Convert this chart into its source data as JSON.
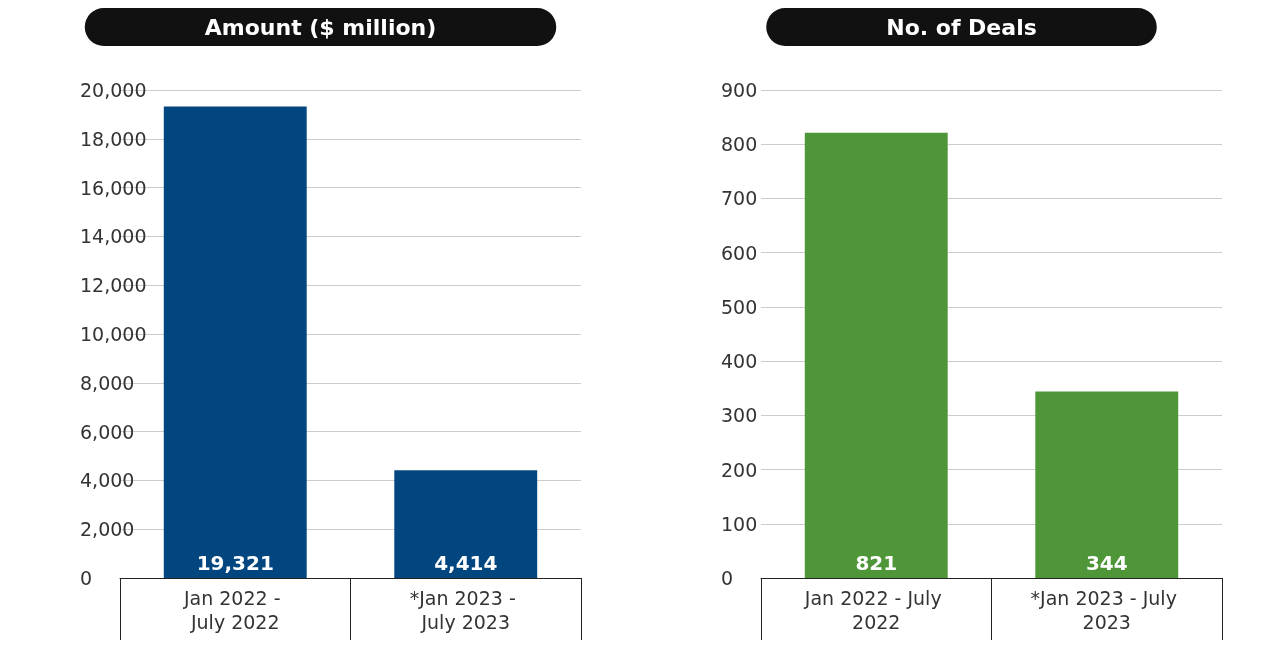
{
  "chart_data": [
    {
      "type": "bar",
      "title": "Amount ($ million)",
      "categories": [
        "Jan 2022 - July 2022",
        "*Jan 2023 - July 2023"
      ],
      "values": [
        19321,
        4414
      ],
      "value_labels": [
        "19,321",
        "4,414"
      ],
      "color": "#02467f",
      "ylim": [
        0,
        20000
      ],
      "yticks": [
        0,
        {
          "value": 2000,
          "label": "2,000"
        },
        {
          "value": 4000,
          "label": "4,000"
        },
        {
          "value": 6000,
          "label": "6,000"
        },
        {
          "value": 8000,
          "label": "8,000"
        },
        {
          "value": 10000,
          "label": "10,000"
        },
        {
          "value": 12000,
          "label": "12,000"
        },
        {
          "value": 14000,
          "label": "14,000"
        },
        {
          "value": 16000,
          "label": "16,000"
        },
        {
          "value": 18000,
          "label": "18,000"
        },
        {
          "value": 20000,
          "label": "20,000"
        }
      ],
      "grid": "y"
    },
    {
      "type": "bar",
      "title": "No. of Deals",
      "categories": [
        "Jan 2022 - July 2022",
        "*Jan 2023 - July 2023"
      ],
      "values": [
        821,
        344
      ],
      "color": "#4f9638",
      "ylim": [
        0,
        900
      ],
      "yticks": [
        0,
        100,
        200,
        300,
        400,
        500,
        600,
        700,
        800,
        900
      ],
      "grid": "y",
      "data_labels": true
    }
  ]
}
